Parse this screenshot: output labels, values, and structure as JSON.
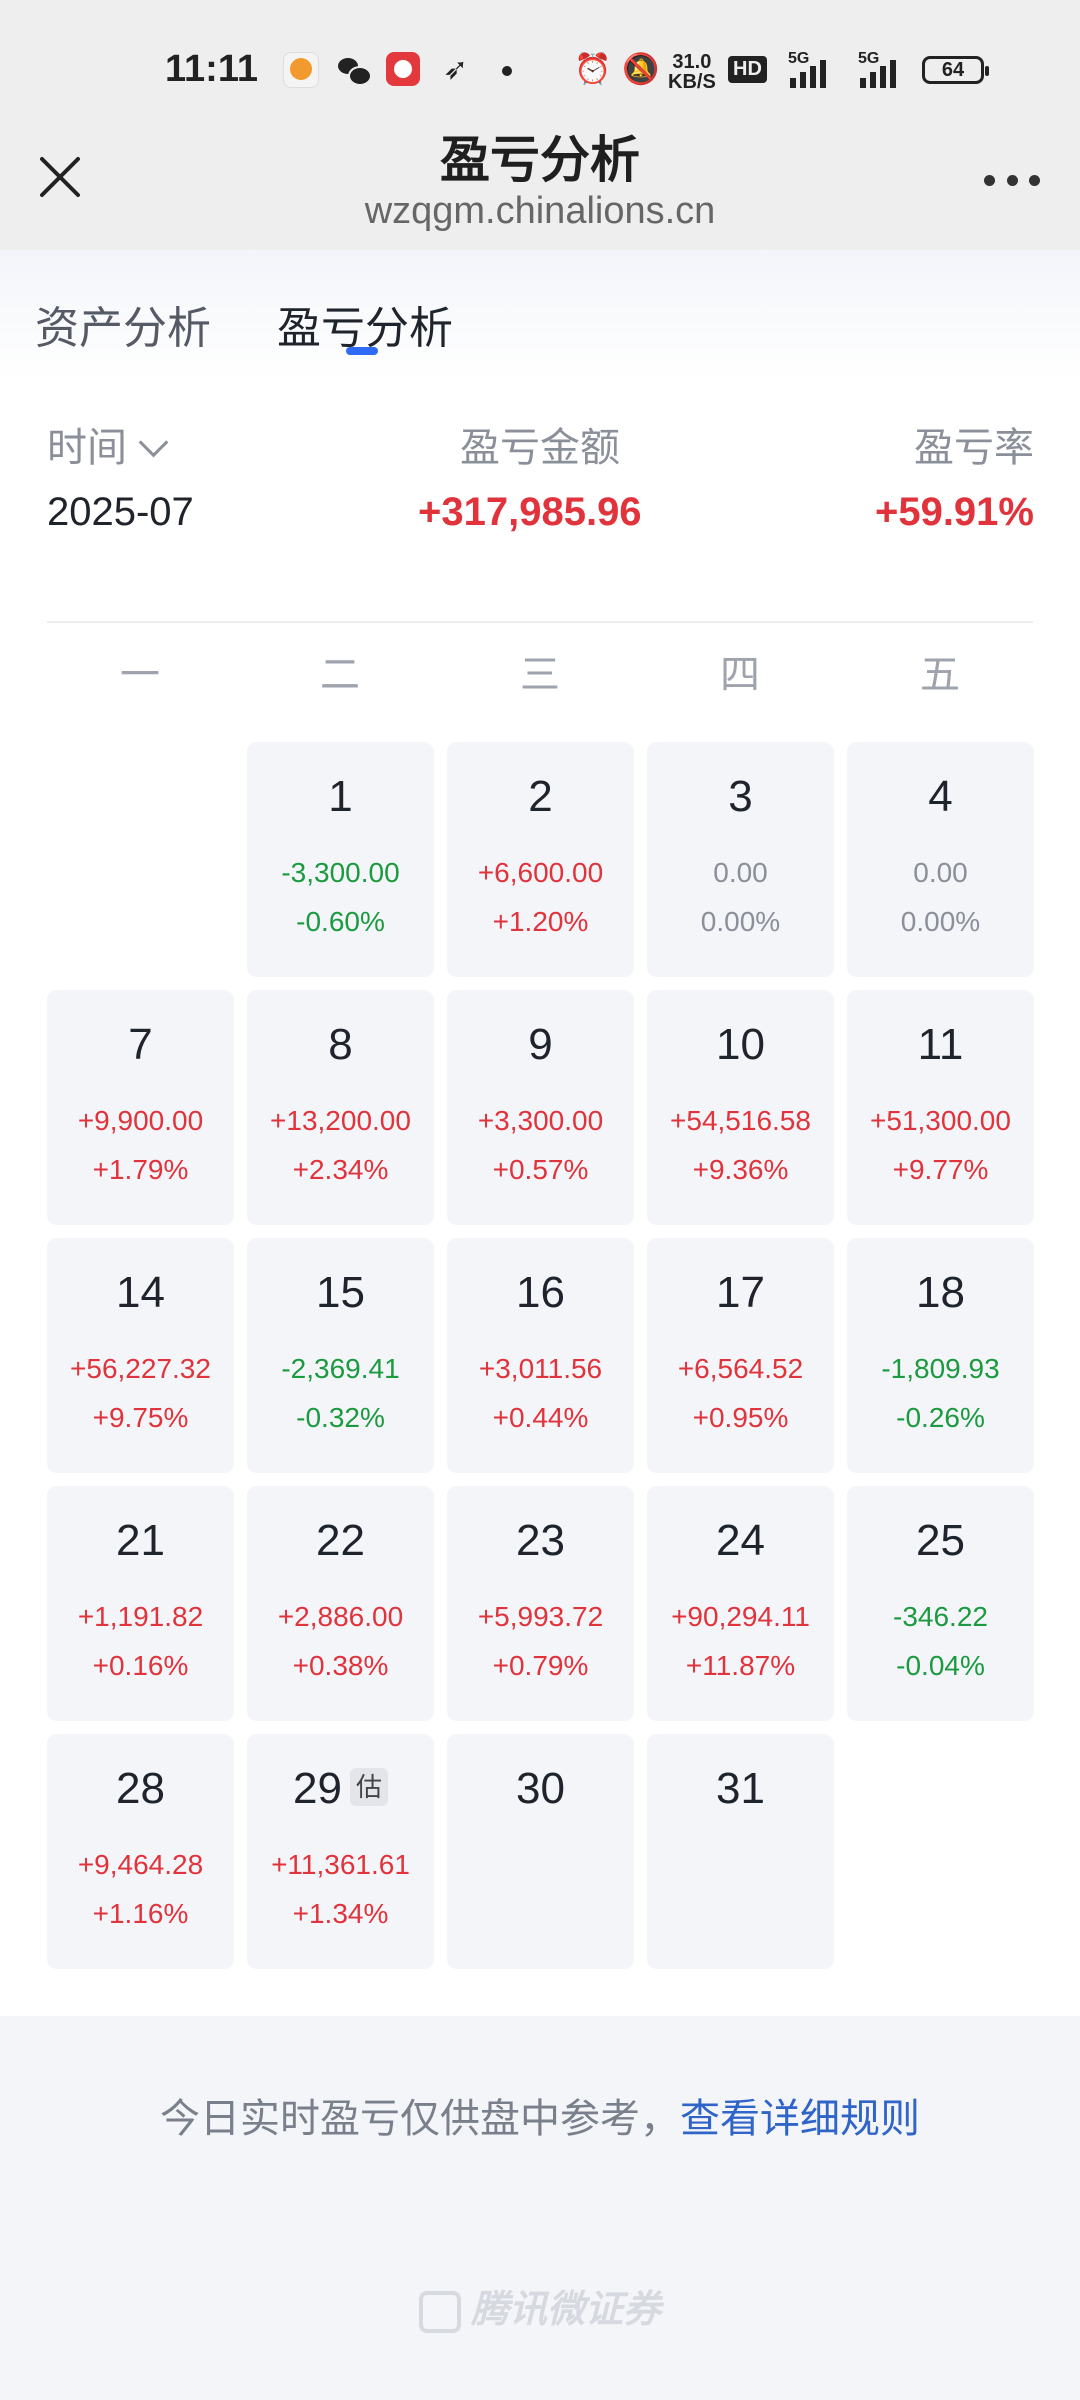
{
  "status_bar": {
    "time": "11:11",
    "speed_top": "31.0",
    "speed_bottom": "KB/S",
    "hd": "HD",
    "net1": "5G",
    "net2": "5G",
    "battery": "64"
  },
  "header": {
    "title": "盈亏分析",
    "subtitle": "wzqgm.chinalions.cn"
  },
  "tabs": [
    {
      "label": "资产分析",
      "active": false
    },
    {
      "label": "盈亏分析",
      "active": true
    }
  ],
  "summary": {
    "time_label": "时间",
    "amount_label": "盈亏金额",
    "rate_label": "盈亏率",
    "month": "2025-07",
    "amount": "+317,985.96",
    "rate": "+59.91%"
  },
  "weekdays": [
    "一",
    "二",
    "三",
    "四",
    "五"
  ],
  "calendar": [
    {
      "day": "1",
      "amount": "-3,300.00",
      "pct": "-0.60%",
      "trend": "down",
      "col": 1,
      "row": 0
    },
    {
      "day": "2",
      "amount": "+6,600.00",
      "pct": "+1.20%",
      "trend": "up",
      "col": 2,
      "row": 0
    },
    {
      "day": "3",
      "amount": "0.00",
      "pct": "0.00%",
      "trend": "flat",
      "col": 3,
      "row": 0
    },
    {
      "day": "4",
      "amount": "0.00",
      "pct": "0.00%",
      "trend": "flat",
      "col": 4,
      "row": 0
    },
    {
      "day": "7",
      "amount": "+9,900.00",
      "pct": "+1.79%",
      "trend": "up",
      "col": 0,
      "row": 1
    },
    {
      "day": "8",
      "amount": "+13,200.00",
      "pct": "+2.34%",
      "trend": "up",
      "col": 1,
      "row": 1
    },
    {
      "day": "9",
      "amount": "+3,300.00",
      "pct": "+0.57%",
      "trend": "up",
      "col": 2,
      "row": 1
    },
    {
      "day": "10",
      "amount": "+54,516.58",
      "pct": "+9.36%",
      "trend": "up",
      "col": 3,
      "row": 1
    },
    {
      "day": "11",
      "amount": "+51,300.00",
      "pct": "+9.77%",
      "trend": "up",
      "col": 4,
      "row": 1
    },
    {
      "day": "14",
      "amount": "+56,227.32",
      "pct": "+9.75%",
      "trend": "up",
      "col": 0,
      "row": 2
    },
    {
      "day": "15",
      "amount": "-2,369.41",
      "pct": "-0.32%",
      "trend": "down",
      "col": 1,
      "row": 2
    },
    {
      "day": "16",
      "amount": "+3,011.56",
      "pct": "+0.44%",
      "trend": "up",
      "col": 2,
      "row": 2
    },
    {
      "day": "17",
      "amount": "+6,564.52",
      "pct": "+0.95%",
      "trend": "up",
      "col": 3,
      "row": 2
    },
    {
      "day": "18",
      "amount": "-1,809.93",
      "pct": "-0.26%",
      "trend": "down",
      "col": 4,
      "row": 2
    },
    {
      "day": "21",
      "amount": "+1,191.82",
      "pct": "+0.16%",
      "trend": "up",
      "col": 0,
      "row": 3
    },
    {
      "day": "22",
      "amount": "+2,886.00",
      "pct": "+0.38%",
      "trend": "up",
      "col": 1,
      "row": 3
    },
    {
      "day": "23",
      "amount": "+5,993.72",
      "pct": "+0.79%",
      "trend": "up",
      "col": 2,
      "row": 3
    },
    {
      "day": "24",
      "amount": "+90,294.11",
      "pct": "+11.87%",
      "trend": "up",
      "col": 3,
      "row": 3
    },
    {
      "day": "25",
      "amount": "-346.22",
      "pct": "-0.04%",
      "trend": "down",
      "col": 4,
      "row": 3
    },
    {
      "day": "28",
      "amount": "+9,464.28",
      "pct": "+1.16%",
      "trend": "up",
      "col": 0,
      "row": 4
    },
    {
      "day": "29",
      "amount": "+11,361.61",
      "pct": "+1.34%",
      "trend": "up",
      "col": 1,
      "row": 4,
      "estimate": "估"
    },
    {
      "day": "30",
      "amount": "",
      "pct": "",
      "trend": "flat",
      "col": 2,
      "row": 4
    },
    {
      "day": "31",
      "amount": "",
      "pct": "",
      "trend": "flat",
      "col": 3,
      "row": 4
    }
  ],
  "footer": {
    "note_text": "今日实时盈亏仅供盘中参考，",
    "note_link": "查看详细规则",
    "brand": "腾讯微证券"
  },
  "colors": {
    "profit": "#e0333b",
    "loss": "#1b9a3f",
    "accent": "#2f6bf5"
  }
}
